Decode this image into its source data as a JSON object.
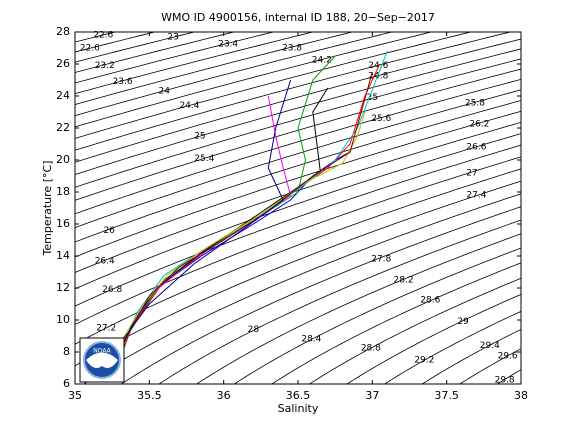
{
  "chart_data": {
    "type": "line",
    "title": "WMO ID 4900156, internal ID 188, 20−Sep−2017",
    "x_label": "Salinity",
    "y_label": "Temperature [°C]",
    "xlim": [
      35,
      38
    ],
    "ylim": [
      6,
      28
    ],
    "xticks": [
      35,
      35.5,
      36,
      36.5,
      37,
      37.5,
      38
    ],
    "yticks": [
      6,
      8,
      10,
      12,
      14,
      16,
      18,
      20,
      22,
      24,
      26,
      28
    ],
    "logo_text": "NOAA",
    "contours": {
      "color": "#000000",
      "levels": [
        22.4,
        22.6,
        22.8,
        23,
        23.2,
        23.4,
        23.6,
        23.8,
        24,
        24.2,
        24.4,
        24.6,
        24.8,
        25,
        25.2,
        25.4,
        25.6,
        25.8,
        26,
        26.2,
        26.4,
        26.6,
        26.8,
        27,
        27.2,
        27.4,
        27.6,
        27.8,
        28,
        28.2,
        28.4,
        28.6,
        28.8,
        29,
        29.2,
        29.4,
        29.6,
        29.8,
        30
      ],
      "labels": [
        {
          "text": "22.6",
          "x": 35.19,
          "y": 27.8
        },
        {
          "text": "22.6",
          "x": 35.1,
          "y": 27.0
        },
        {
          "text": "23",
          "x": 35.66,
          "y": 27.7
        },
        {
          "text": "23.4",
          "x": 36.03,
          "y": 27.25
        },
        {
          "text": "23.8",
          "x": 36.46,
          "y": 27.0
        },
        {
          "text": "24.2",
          "x": 36.66,
          "y": 26.25
        },
        {
          "text": "24.6",
          "x": 37.04,
          "y": 25.9
        },
        {
          "text": "24.8",
          "x": 37.04,
          "y": 25.25
        },
        {
          "text": "25",
          "x": 37.0,
          "y": 23.9
        },
        {
          "text": "25.6",
          "x": 37.06,
          "y": 22.6
        },
        {
          "text": "23.2",
          "x": 35.2,
          "y": 25.9
        },
        {
          "text": "23.6",
          "x": 35.32,
          "y": 24.9
        },
        {
          "text": "24",
          "x": 35.6,
          "y": 24.3
        },
        {
          "text": "24.4",
          "x": 35.77,
          "y": 23.4
        },
        {
          "text": "25",
          "x": 35.84,
          "y": 21.5
        },
        {
          "text": "25.4",
          "x": 35.87,
          "y": 20.1
        },
        {
          "text": "25.8",
          "x": 37.69,
          "y": 23.55
        },
        {
          "text": "26.2",
          "x": 37.72,
          "y": 22.25
        },
        {
          "text": "26.6",
          "x": 37.7,
          "y": 20.8
        },
        {
          "text": "27",
          "x": 37.67,
          "y": 19.2
        },
        {
          "text": "27.4",
          "x": 37.7,
          "y": 17.8
        },
        {
          "text": "26",
          "x": 35.23,
          "y": 15.6
        },
        {
          "text": "26.4",
          "x": 35.2,
          "y": 13.7
        },
        {
          "text": "26.8",
          "x": 35.25,
          "y": 11.9
        },
        {
          "text": "27.2",
          "x": 35.21,
          "y": 9.5
        },
        {
          "text": "27.8",
          "x": 37.06,
          "y": 13.8
        },
        {
          "text": "28.2",
          "x": 37.21,
          "y": 12.5
        },
        {
          "text": "28.6",
          "x": 37.39,
          "y": 11.25
        },
        {
          "text": "29",
          "x": 37.61,
          "y": 9.9
        },
        {
          "text": "28",
          "x": 36.2,
          "y": 9.4
        },
        {
          "text": "28.4",
          "x": 36.59,
          "y": 8.8
        },
        {
          "text": "28.8",
          "x": 36.99,
          "y": 8.25
        },
        {
          "text": "29.2",
          "x": 37.35,
          "y": 7.5
        },
        {
          "text": "29.4",
          "x": 37.79,
          "y": 8.4
        },
        {
          "text": "29.6",
          "x": 37.91,
          "y": 7.75
        },
        {
          "text": "29.8",
          "x": 37.89,
          "y": 6.25
        }
      ]
    },
    "series": [
      {
        "color": "#0000ff",
        "x": [
          35.25,
          35.35,
          35.55,
          35.85,
          36.2,
          36.45,
          36.6,
          36.75,
          36.85
        ],
        "values": [
          7,
          9,
          12,
          14,
          16,
          17.5,
          19,
          20,
          20.5
        ]
      },
      {
        "color": "#00a000",
        "x": [
          35.3,
          35.4,
          35.6,
          35.9,
          36.25,
          36.5,
          36.55,
          36.5,
          36.6,
          36.75
        ],
        "values": [
          7.5,
          10,
          12.5,
          14.5,
          16.5,
          18,
          20,
          22,
          25,
          26.5
        ]
      },
      {
        "color": "#ff0000",
        "x": [
          35.28,
          35.38,
          35.58,
          35.88,
          36.22,
          36.5,
          36.7,
          36.85,
          36.95,
          37.05
        ],
        "values": [
          7.2,
          9.5,
          12.2,
          14.3,
          16.3,
          18.2,
          19.5,
          21,
          24,
          26
        ]
      },
      {
        "color": "#ff00ff",
        "x": [
          35.22,
          35.35,
          35.5,
          35.8,
          36.2,
          36.45,
          36.4,
          36.35,
          36.3
        ],
        "values": [
          6.5,
          9,
          11.5,
          13.8,
          16.2,
          17.8,
          19.5,
          21.5,
          24
        ]
      },
      {
        "color": "#00bfbf",
        "x": [
          35.3,
          35.42,
          35.6,
          35.9,
          36.25,
          36.55,
          36.75,
          36.9,
          37.1
        ],
        "values": [
          8,
          10.5,
          12.8,
          14.6,
          16.6,
          18.5,
          20,
          22,
          26.8
        ]
      },
      {
        "color": "#000000",
        "x": [
          35.25,
          35.4,
          35.55,
          35.85,
          36.2,
          36.5,
          36.65,
          36.6,
          36.7
        ],
        "values": [
          7,
          10,
          12,
          14.2,
          16.4,
          18.3,
          19.3,
          23,
          24.5
        ]
      },
      {
        "color": "#bfbf00",
        "x": [
          35.3,
          35.45,
          35.62,
          35.9,
          36.25,
          36.55,
          36.8,
          36.9,
          36.95
        ],
        "values": [
          8.5,
          10.8,
          12.8,
          14.6,
          16.6,
          18.6,
          19.8,
          21.5,
          23
        ]
      },
      {
        "color": "#800000",
        "x": [
          35.35,
          35.5,
          35.7,
          36.0,
          36.3,
          36.6,
          36.85,
          37.0
        ],
        "values": [
          9,
          11.5,
          13.3,
          15,
          16.8,
          19,
          20.5,
          25.5
        ]
      },
      {
        "color": "#000080",
        "x": [
          35.2,
          35.3,
          35.5,
          35.8,
          36.15,
          36.4,
          36.3,
          36.35,
          36.45
        ],
        "values": [
          6.3,
          8.5,
          11,
          13.5,
          15.8,
          17.5,
          19.5,
          22,
          25
        ]
      }
    ]
  }
}
